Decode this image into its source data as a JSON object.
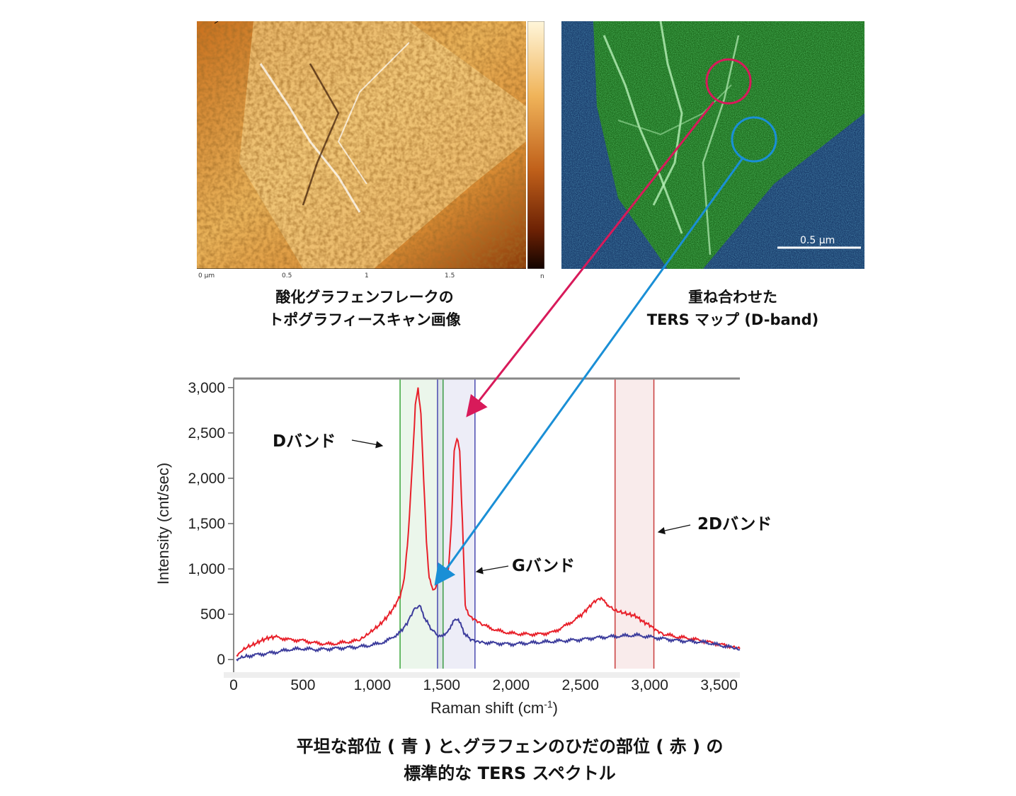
{
  "captions": {
    "afm_line1": "酸化グラフェンフレークの",
    "afm_line2": "トポグラフィースキャン画像",
    "ters_line1": "重ね合わせた",
    "ters_line2": "TERS マップ (D-band)",
    "bottom_line1": "平坦な部位 ( 青 ) と､グラフェンのひだの部位 ( 赤 ) の",
    "bottom_line2": "標準的な TERS スペクトル"
  },
  "afm": {
    "axis_ticks": [
      "0 µm",
      "0.5",
      "1",
      "1.5"
    ],
    "colorbar_unit": "n"
  },
  "ters_map": {
    "scale_bar_label": "0.5 µm"
  },
  "annotations": {
    "d_band": "Dバンド",
    "g_band": "Gバンド",
    "two_d_band": "2Dバンド"
  },
  "colors": {
    "red_series": "#e8202a",
    "blue_series": "#3c3c9c",
    "green_band": "#3aa53a",
    "pink_arrow": "#d81a5a",
    "blue_arrow": "#1a8fd6"
  },
  "chart_data": {
    "type": "line",
    "xlabel": "Raman shift (cm-1)",
    "ylabel": "Intensity (cnt/sec)",
    "xlim": [
      0,
      3650
    ],
    "ylim": [
      -100,
      3100
    ],
    "xticks": [
      0,
      500,
      1000,
      1500,
      2000,
      2500,
      3000,
      3500
    ],
    "xtick_labels": [
      "0",
      "500",
      "1,000",
      "1,500",
      "2,000",
      "2,500",
      "3,000",
      "3,500"
    ],
    "yticks": [
      0,
      500,
      1000,
      1500,
      2000,
      2500,
      3000
    ],
    "ytick_labels": [
      "0",
      "500",
      "1,000",
      "1,500",
      "2,000",
      "2,500",
      "3,000"
    ],
    "bands": [
      {
        "name": "D",
        "from": 1200,
        "to": 1510,
        "color": "#3aa53a"
      },
      {
        "name": "G",
        "from": 1470,
        "to": 1740,
        "color": "#4a4ab0"
      },
      {
        "name": "2D",
        "from": 2750,
        "to": 3030,
        "color": "#c83c3c"
      }
    ],
    "series": [
      {
        "color": "#e8202a",
        "x": [
          20,
          50,
          100,
          150,
          200,
          250,
          300,
          400,
          500,
          600,
          700,
          800,
          900,
          950,
          1000,
          1050,
          1100,
          1150,
          1200,
          1230,
          1260,
          1290,
          1310,
          1330,
          1350,
          1370,
          1390,
          1410,
          1430,
          1450,
          1470,
          1490,
          1510,
          1530,
          1550,
          1570,
          1590,
          1610,
          1630,
          1650,
          1670,
          1700,
          1750,
          1800,
          1900,
          2000,
          2100,
          2200,
          2300,
          2400,
          2500,
          2550,
          2600,
          2650,
          2680,
          2700,
          2750,
          2800,
          2850,
          2900,
          2950,
          3000,
          3050,
          3100,
          3200,
          3300,
          3400,
          3500,
          3600,
          3650
        ],
        "y": [
          30,
          90,
          140,
          170,
          210,
          240,
          250,
          220,
          210,
          180,
          170,
          190,
          210,
          260,
          320,
          380,
          460,
          560,
          700,
          900,
          1400,
          2200,
          2800,
          3000,
          2700,
          2000,
          1300,
          900,
          800,
          760,
          860,
          1000,
          950,
          900,
          1000,
          1500,
          2300,
          2450,
          2300,
          1500,
          600,
          480,
          430,
          380,
          320,
          290,
          280,
          280,
          300,
          380,
          480,
          560,
          640,
          680,
          630,
          600,
          540,
          520,
          500,
          480,
          420,
          380,
          320,
          280,
          250,
          230,
          200,
          170,
          140,
          120
        ]
      },
      {
        "color": "#3c3c9c",
        "x": [
          20,
          50,
          100,
          200,
          300,
          400,
          500,
          600,
          700,
          800,
          900,
          1000,
          1100,
          1200,
          1250,
          1300,
          1340,
          1380,
          1420,
          1460,
          1500,
          1530,
          1560,
          1590,
          1620,
          1660,
          1700,
          1750,
          1800,
          1900,
          2000,
          2100,
          2200,
          2300,
          2400,
          2500,
          2600,
          2700,
          2800,
          2900,
          3000,
          3100,
          3200,
          3300,
          3400,
          3500,
          3600,
          3650
        ],
        "y": [
          0,
          20,
          40,
          60,
          80,
          110,
          120,
          110,
          120,
          130,
          140,
          160,
          200,
          300,
          400,
          550,
          600,
          450,
          350,
          280,
          250,
          280,
          350,
          450,
          450,
          300,
          230,
          200,
          190,
          180,
          170,
          180,
          190,
          200,
          210,
          220,
          240,
          250,
          260,
          270,
          250,
          230,
          210,
          200,
          190,
          160,
          130,
          110
        ]
      }
    ]
  }
}
